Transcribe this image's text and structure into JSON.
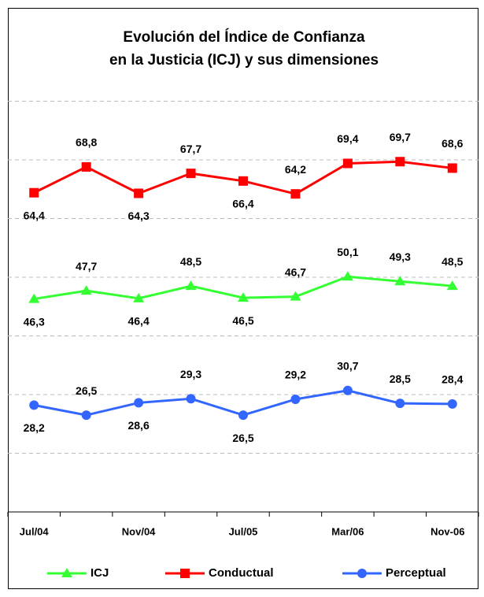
{
  "chart_data": {
    "type": "line",
    "title": [
      "Evolución del Índice de Confianza",
      "en la Justicia (ICJ) y sus dimensiones"
    ],
    "categories": [
      "Jul/04",
      null,
      "Nov/04",
      null,
      "Jul/05",
      null,
      "Mar/06",
      null,
      "Nov-06"
    ],
    "series": [
      {
        "name": "ICJ",
        "color": "#33ff33",
        "marker": "triangle",
        "values": [
          46.3,
          47.7,
          46.4,
          48.5,
          46.5,
          46.7,
          50.1,
          49.3,
          48.5
        ],
        "value_labels": [
          "46,3",
          "47,7",
          "46,4",
          "48,5",
          "46,5",
          "46,7",
          "50,1",
          "49,3",
          "48,5"
        ]
      },
      {
        "name": "Conductual",
        "color": "#ff0000",
        "marker": "square",
        "values": [
          64.4,
          68.8,
          64.3,
          67.7,
          66.4,
          64.2,
          69.4,
          69.7,
          68.6
        ],
        "value_labels": [
          "64,4",
          "68,8",
          "64,3",
          "67,7",
          "66,4",
          "64,2",
          "69,4",
          "69,7",
          "68,6"
        ]
      },
      {
        "name": "Perceptual",
        "color": "#3366ff",
        "marker": "circle",
        "values": [
          28.2,
          26.5,
          28.6,
          29.3,
          26.5,
          29.2,
          30.7,
          28.5,
          28.4
        ],
        "value_labels": [
          "28,2",
          "26,5",
          "28,6",
          "29,3",
          "26,5",
          "29,2",
          "30,7",
          "28,5",
          "28,4"
        ]
      }
    ],
    "ylim": [
      10,
      90
    ],
    "yticks": [
      20,
      30,
      40,
      50,
      60,
      70,
      80
    ],
    "grid": true,
    "legend": "bottom"
  }
}
